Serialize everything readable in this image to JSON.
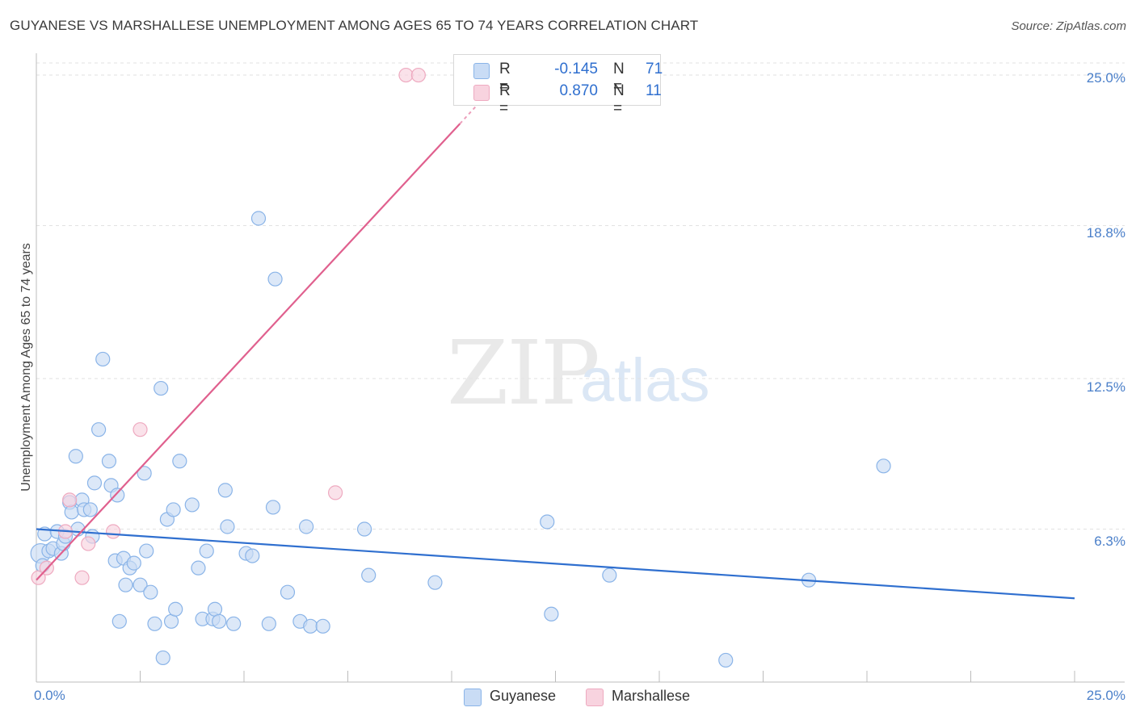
{
  "chart_data": {
    "type": "scatter",
    "title": "GUYANESE VS MARSHALLESE UNEMPLOYMENT AMONG AGES 65 TO 74 YEARS CORRELATION CHART",
    "source": "Source: ZipAtlas.com",
    "xlabel": "",
    "ylabel": "Unemployment Among Ages 65 to 74 years",
    "xlim": [
      0,
      25
    ],
    "ylim": [
      0,
      25.5
    ],
    "x_tick_labels": [
      "0.0%",
      "25.0%"
    ],
    "y_tick_labels": [
      "6.3%",
      "12.5%",
      "18.8%",
      "25.0%"
    ],
    "y_ticks": [
      6.3,
      12.5,
      18.8,
      25.0
    ],
    "grid": true,
    "watermark": {
      "zip": "ZIP",
      "atlas": "atlas"
    },
    "legend": {
      "rows": [
        {
          "r_label": "R =",
          "r_value": "-0.145",
          "n_label": "N =",
          "n_value": "71"
        },
        {
          "r_label": "R =",
          "r_value": "0.870",
          "n_label": "N =",
          "n_value": "11"
        }
      ]
    },
    "series": [
      {
        "name": "Guyanese",
        "color": "#8ab4e8",
        "fill": "#c9dcf5",
        "trend_color": "#2f6fcf",
        "trend": {
          "x": [
            0.0,
            25.0
          ],
          "y": [
            6.3,
            3.45
          ]
        },
        "points": [
          {
            "x": 0.1,
            "y": 5.3,
            "big": true
          },
          {
            "x": 0.2,
            "y": 6.1
          },
          {
            "x": 0.3,
            "y": 5.4
          },
          {
            "x": 0.4,
            "y": 5.5
          },
          {
            "x": 0.5,
            "y": 6.2
          },
          {
            "x": 0.6,
            "y": 5.3
          },
          {
            "x": 0.65,
            "y": 5.7
          },
          {
            "x": 0.7,
            "y": 6.0
          },
          {
            "x": 0.8,
            "y": 7.4
          },
          {
            "x": 0.85,
            "y": 7.0
          },
          {
            "x": 0.95,
            "y": 9.3
          },
          {
            "x": 1.0,
            "y": 6.3
          },
          {
            "x": 1.1,
            "y": 7.5
          },
          {
            "x": 1.15,
            "y": 7.1
          },
          {
            "x": 1.3,
            "y": 7.1
          },
          {
            "x": 1.35,
            "y": 6.0
          },
          {
            "x": 1.4,
            "y": 8.2
          },
          {
            "x": 1.5,
            "y": 10.4
          },
          {
            "x": 1.6,
            "y": 13.3
          },
          {
            "x": 1.75,
            "y": 9.1
          },
          {
            "x": 1.8,
            "y": 8.1
          },
          {
            "x": 1.9,
            "y": 5.0
          },
          {
            "x": 1.95,
            "y": 7.7
          },
          {
            "x": 2.0,
            "y": 2.5
          },
          {
            "x": 2.1,
            "y": 5.1
          },
          {
            "x": 2.15,
            "y": 4.0
          },
          {
            "x": 2.25,
            "y": 4.7
          },
          {
            "x": 2.35,
            "y": 4.9
          },
          {
            "x": 2.5,
            "y": 4.0
          },
          {
            "x": 2.6,
            "y": 8.6
          },
          {
            "x": 2.65,
            "y": 5.4
          },
          {
            "x": 2.75,
            "y": 3.7
          },
          {
            "x": 2.85,
            "y": 2.4
          },
          {
            "x": 3.0,
            "y": 12.1
          },
          {
            "x": 3.05,
            "y": 1.0
          },
          {
            "x": 3.15,
            "y": 6.7
          },
          {
            "x": 3.25,
            "y": 2.5
          },
          {
            "x": 3.3,
            "y": 7.1
          },
          {
            "x": 3.35,
            "y": 3.0
          },
          {
            "x": 3.45,
            "y": 9.1
          },
          {
            "x": 3.75,
            "y": 7.3
          },
          {
            "x": 3.9,
            "y": 4.7
          },
          {
            "x": 4.0,
            "y": 2.6
          },
          {
            "x": 4.1,
            "y": 5.4
          },
          {
            "x": 4.25,
            "y": 2.6
          },
          {
            "x": 4.3,
            "y": 3.0
          },
          {
            "x": 4.4,
            "y": 2.5
          },
          {
            "x": 4.55,
            "y": 7.9
          },
          {
            "x": 4.6,
            "y": 6.4
          },
          {
            "x": 4.75,
            "y": 2.4
          },
          {
            "x": 5.05,
            "y": 5.3
          },
          {
            "x": 5.2,
            "y": 5.2
          },
          {
            "x": 5.35,
            "y": 19.1
          },
          {
            "x": 5.6,
            "y": 2.4
          },
          {
            "x": 5.7,
            "y": 7.2
          },
          {
            "x": 5.75,
            "y": 16.6
          },
          {
            "x": 6.05,
            "y": 3.7
          },
          {
            "x": 6.35,
            "y": 2.5
          },
          {
            "x": 6.5,
            "y": 6.4
          },
          {
            "x": 6.6,
            "y": 2.3
          },
          {
            "x": 6.9,
            "y": 2.3
          },
          {
            "x": 7.9,
            "y": 6.3
          },
          {
            "x": 8.0,
            "y": 4.4
          },
          {
            "x": 9.6,
            "y": 4.1
          },
          {
            "x": 12.3,
            "y": 6.6
          },
          {
            "x": 12.4,
            "y": 2.8
          },
          {
            "x": 13.8,
            "y": 4.4
          },
          {
            "x": 16.6,
            "y": 0.9
          },
          {
            "x": 18.6,
            "y": 4.2
          },
          {
            "x": 20.4,
            "y": 8.9
          },
          {
            "x": 0.15,
            "y": 4.8
          }
        ]
      },
      {
        "name": "Marshallese",
        "color": "#eeaac0",
        "fill": "#f8d3df",
        "trend_color": "#e0608e",
        "trend": {
          "x": [
            0.0,
            10.2
          ],
          "y": [
            4.2,
            23.0
          ],
          "dashed_to": {
            "x": 10.9,
            "y": 24.3
          }
        },
        "points": [
          {
            "x": 0.05,
            "y": 4.3
          },
          {
            "x": 0.25,
            "y": 4.7
          },
          {
            "x": 0.7,
            "y": 6.2
          },
          {
            "x": 0.8,
            "y": 7.5
          },
          {
            "x": 1.1,
            "y": 4.3
          },
          {
            "x": 1.25,
            "y": 5.7
          },
          {
            "x": 1.85,
            "y": 6.2
          },
          {
            "x": 2.5,
            "y": 10.4
          },
          {
            "x": 7.2,
            "y": 7.8
          },
          {
            "x": 8.9,
            "y": 25.0
          },
          {
            "x": 9.2,
            "y": 25.0
          }
        ]
      }
    ]
  }
}
